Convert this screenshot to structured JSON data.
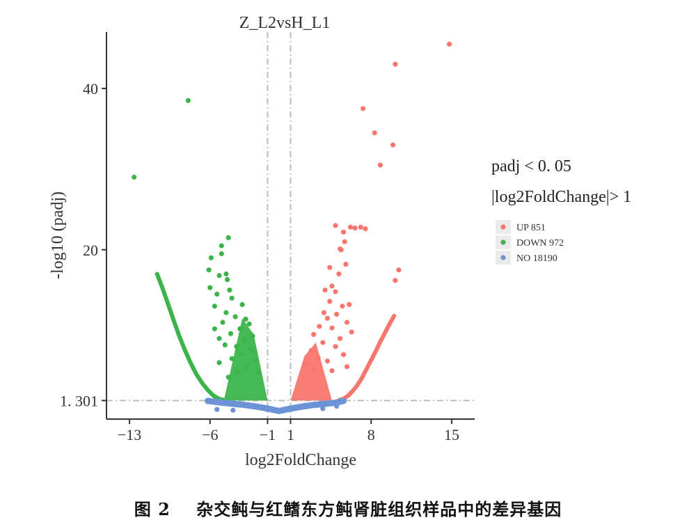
{
  "caption": {
    "figure_label": "图 2",
    "text": "杂交鲀与红鳍东方鲀肾脏组织样品中的差异基因"
  },
  "chart_data": {
    "type": "scatter",
    "subtype": "volcano",
    "title": "Z_L2vsH_L1",
    "xlabel": "log2FoldChange",
    "ylabel": "-log10 (padj)",
    "xlim": [
      -15,
      17
    ],
    "ylim": [
      -1,
      47
    ],
    "xticks": [
      -13,
      -6,
      -1,
      1,
      8,
      15
    ],
    "xtick_labels": [
      "−13",
      "−6",
      "−1",
      "1",
      "8",
      "15"
    ],
    "yticks": [
      1.301,
      20,
      40
    ],
    "ytick_labels": [
      "1. 301",
      "20",
      "40"
    ],
    "thresholds": {
      "fold_change": [
        -1,
        1
      ],
      "padj_line": 1.301
    },
    "grid": false,
    "legend": {
      "position": "right",
      "title_line1": "padj < 0. 05",
      "title_line2": "|log2FoldChange|> 1",
      "entries": [
        {
          "key": "up",
          "label": "UP 851",
          "color": "#f8766d"
        },
        {
          "key": "down",
          "label": "DOWN 972",
          "color": "#3cb44b"
        },
        {
          "key": "no",
          "label": "NO 18190",
          "color": "#6b93d6"
        }
      ]
    },
    "series": [
      {
        "key": "up",
        "color": "#f8766d",
        "points": [
          [
            14.8,
            45.5
          ],
          [
            10.1,
            43.0
          ],
          [
            7.3,
            37.5
          ],
          [
            8.3,
            34.5
          ],
          [
            9.9,
            33.0
          ],
          [
            8.8,
            30.5
          ],
          [
            10.4,
            17.5
          ],
          [
            10.1,
            16.2
          ],
          [
            4.9,
            23.0
          ],
          [
            5.4,
            20.0
          ],
          [
            6.2,
            22.8
          ],
          [
            6.6,
            22.7
          ],
          [
            7.1,
            22.8
          ],
          [
            7.5,
            22.6
          ],
          [
            5.6,
            22.2
          ],
          [
            5.3,
            20.1
          ],
          [
            5.7,
            21.0
          ],
          [
            5.8,
            18.2
          ],
          [
            4.4,
            17.8
          ],
          [
            5.2,
            17.0
          ],
          [
            4.6,
            15.5
          ],
          [
            4.0,
            15.0
          ],
          [
            4.9,
            14.8
          ],
          [
            4.4,
            13.6
          ],
          [
            5.5,
            13.0
          ],
          [
            6.1,
            13.2
          ],
          [
            3.9,
            12.2
          ],
          [
            5.0,
            12.0
          ],
          [
            4.2,
            11.5
          ],
          [
            5.9,
            11.0
          ],
          [
            3.5,
            10.5
          ],
          [
            4.6,
            10.3
          ],
          [
            6.3,
            9.8
          ],
          [
            3.0,
            9.5
          ],
          [
            5.3,
            9.0
          ],
          [
            3.8,
            8.5
          ],
          [
            4.9,
            8.0
          ],
          [
            2.8,
            7.5
          ],
          [
            5.6,
            7.0
          ],
          [
            3.4,
            6.6
          ],
          [
            4.2,
            6.2
          ],
          [
            2.3,
            5.8
          ],
          [
            3.0,
            5.2
          ],
          [
            4.6,
            5.0
          ],
          [
            5.9,
            5.5
          ]
        ]
      },
      {
        "key": "down",
        "color": "#3cb44b",
        "points": [
          [
            -7.9,
            38.5
          ],
          [
            -12.6,
            29.0
          ],
          [
            -4.4,
            21.5
          ],
          [
            -5.0,
            20.5
          ],
          [
            -5.9,
            19.0
          ],
          [
            -5.0,
            19.5
          ],
          [
            -6.1,
            17.5
          ],
          [
            -5.2,
            16.8
          ],
          [
            -4.6,
            17.0
          ],
          [
            -4.5,
            16.3
          ],
          [
            -6.0,
            15.3
          ],
          [
            -4.3,
            15.0
          ],
          [
            -5.4,
            14.5
          ],
          [
            -4.1,
            14.0
          ],
          [
            -3.2,
            13.2
          ],
          [
            -5.6,
            13.0
          ],
          [
            -4.6,
            12.2
          ],
          [
            -3.8,
            11.7
          ],
          [
            -2.9,
            11.4
          ],
          [
            -4.9,
            11.0
          ],
          [
            -2.6,
            10.8
          ],
          [
            -5.6,
            10.2
          ],
          [
            -3.4,
            10.2
          ],
          [
            -4.2,
            9.6
          ],
          [
            -2.3,
            9.3
          ],
          [
            -5.2,
            9.0
          ],
          [
            -3.0,
            8.8
          ],
          [
            -3.7,
            8.0
          ],
          [
            -4.7,
            8.2
          ],
          [
            -2.4,
            7.6
          ],
          [
            -3.2,
            7.0
          ],
          [
            -4.1,
            6.5
          ],
          [
            -2.0,
            6.3
          ],
          [
            -5.2,
            6.0
          ],
          [
            -2.8,
            5.4
          ],
          [
            -3.6,
            4.8
          ],
          [
            -1.8,
            4.8
          ],
          [
            -4.4,
            4.2
          ]
        ]
      },
      {
        "key": "no",
        "color": "#6b93d6",
        "points": [
          [
            -5.4,
            0.2
          ],
          [
            -4.0,
            0.1
          ],
          [
            3.8,
            0.3
          ],
          [
            5.0,
            0.6
          ],
          [
            -1.0,
            0.3
          ],
          [
            1.2,
            0.3
          ]
        ]
      }
    ],
    "curves": [
      {
        "key": "down_edge",
        "color": "#3cb44b",
        "x": [
          -10.6,
          -10.2,
          -9.7,
          -9.2,
          -8.7,
          -8.2,
          -7.7,
          -7.2,
          -6.7,
          -6.2,
          -5.7,
          -5.2,
          -4.8
        ],
        "y": [
          17,
          15.5,
          13.5,
          11.4,
          9.4,
          7.6,
          6.0,
          4.6,
          3.5,
          2.6,
          1.9,
          1.5,
          1.35
        ]
      },
      {
        "key": "up_edge",
        "color": "#f8766d",
        "x": [
          5.2,
          5.6,
          6.0,
          6.4,
          6.8,
          7.2,
          7.6,
          8.0,
          8.4,
          8.8,
          9.2,
          9.6,
          10.0
        ],
        "y": [
          1.35,
          1.5,
          1.9,
          2.5,
          3.2,
          4.1,
          5.2,
          6.3,
          7.4,
          8.6,
          9.7,
          10.8,
          11.8
        ]
      },
      {
        "key": "no_band",
        "color": "#6b93d6",
        "x": [
          -6.2,
          -5.0,
          -4.0,
          -3.0,
          -2.0,
          -1.0,
          0,
          1.0,
          2.0,
          3.0,
          4.0,
          5.0,
          5.6
        ],
        "y": [
          1.25,
          1.05,
          0.9,
          0.75,
          0.55,
          0.3,
          0.0,
          0.3,
          0.55,
          0.75,
          0.9,
          1.05,
          1.25
        ]
      }
    ]
  }
}
